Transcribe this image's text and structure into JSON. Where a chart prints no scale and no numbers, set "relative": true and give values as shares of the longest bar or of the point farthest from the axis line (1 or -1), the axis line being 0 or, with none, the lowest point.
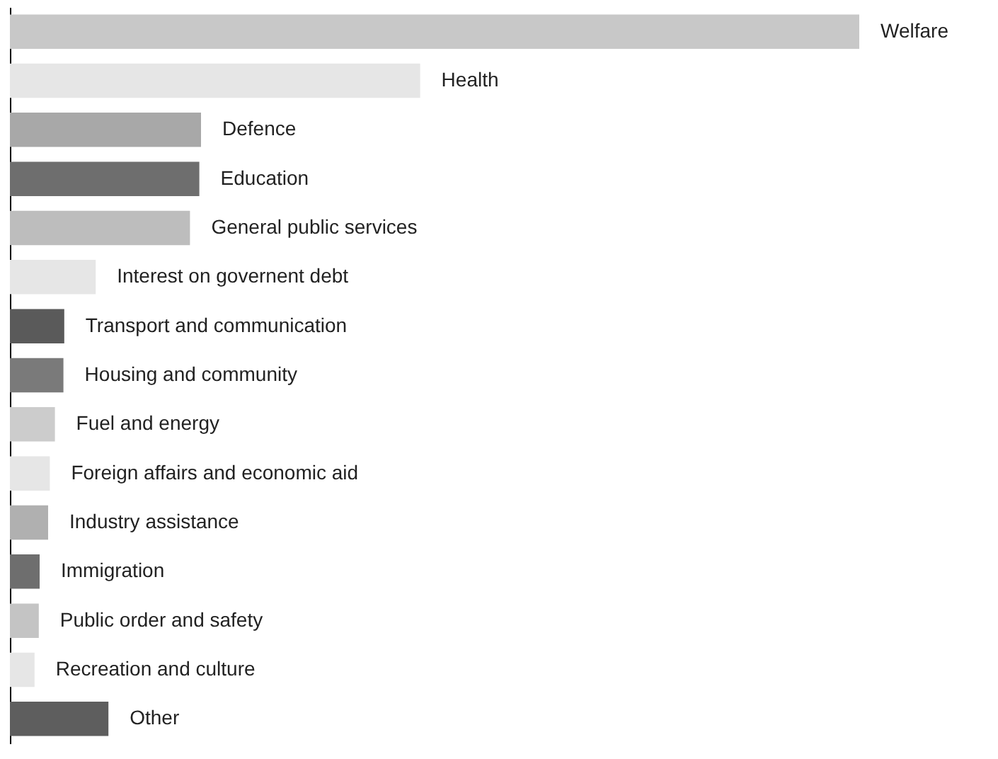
{
  "chart_data": {
    "type": "bar",
    "orientation": "horizontal",
    "relative": true,
    "categories": [
      "Welfare",
      "Health",
      "Defence",
      "Education",
      "General public services",
      "Interest on governent debt",
      "Transport and communication",
      "Housing and community",
      "Fuel and energy",
      "Foreign affairs and economic aid",
      "Industry assistance",
      "Immigration",
      "Public order and safety",
      "Recreation and culture",
      "Other"
    ],
    "values": [
      1,
      0.483,
      0.225,
      0.223,
      0.212,
      0.101,
      0.064,
      0.063,
      0.053,
      0.047,
      0.045,
      0.035,
      0.034,
      0.029,
      0.116
    ],
    "colors": [
      "#c8c8c8",
      "#e6e6e6",
      "#a8a8a8",
      "#6e6e6e",
      "#bdbdbd",
      "#e6e6e6",
      "#5a5a5a",
      "#7a7a7a",
      "#cccccc",
      "#e6e6e6",
      "#b0b0b0",
      "#6e6e6e",
      "#c4c4c4",
      "#e6e6e6",
      "#5e5e5e"
    ],
    "legend": false
  }
}
